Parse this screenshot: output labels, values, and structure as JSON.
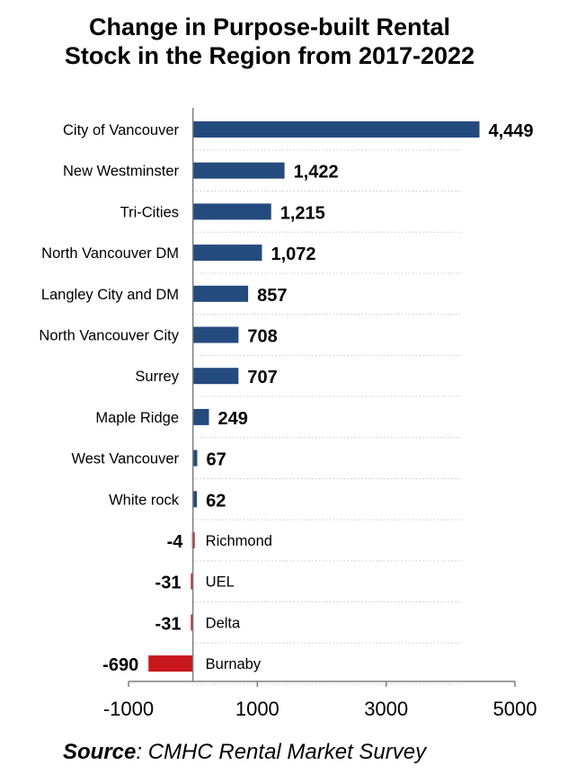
{
  "chart_data": {
    "type": "bar",
    "orientation": "horizontal",
    "title_lines": [
      "Change in Purpose-built Rental",
      "Stock in the Region from 2017-2022"
    ],
    "categories": [
      "City of Vancouver",
      "New Westminster",
      "Tri-Cities",
      "North Vancouver DM",
      "Langley City and DM",
      "North Vancouver City",
      "Surrey",
      "Maple Ridge",
      "West Vancouver",
      "White rock",
      "Richmond",
      "UEL",
      "Delta",
      "Burnaby"
    ],
    "values": [
      4449,
      1422,
      1215,
      1072,
      857,
      708,
      707,
      249,
      67,
      62,
      -4,
      -31,
      -31,
      -690
    ],
    "value_labels": [
      "4,449",
      "1,422",
      "1,215",
      "1,072",
      "857",
      "708",
      "707",
      "249",
      "67",
      "62",
      "-4",
      "-31",
      "-31",
      "-690"
    ],
    "x_ticks": [
      "-1000",
      "1000",
      "3000",
      "5000"
    ],
    "x_tick_values": [
      -1000,
      1000,
      3000,
      5000
    ],
    "xlim": [
      -1000,
      5000
    ],
    "grid": "horizontal dotted",
    "colors": {
      "positive": "#244b7e",
      "negative": "#c8171c",
      "axis": "#7f7f7f",
      "grid": "#c8c8c8"
    }
  },
  "source": {
    "prefix": "Source",
    "text": ": CMHC Rental Market Survey"
  }
}
